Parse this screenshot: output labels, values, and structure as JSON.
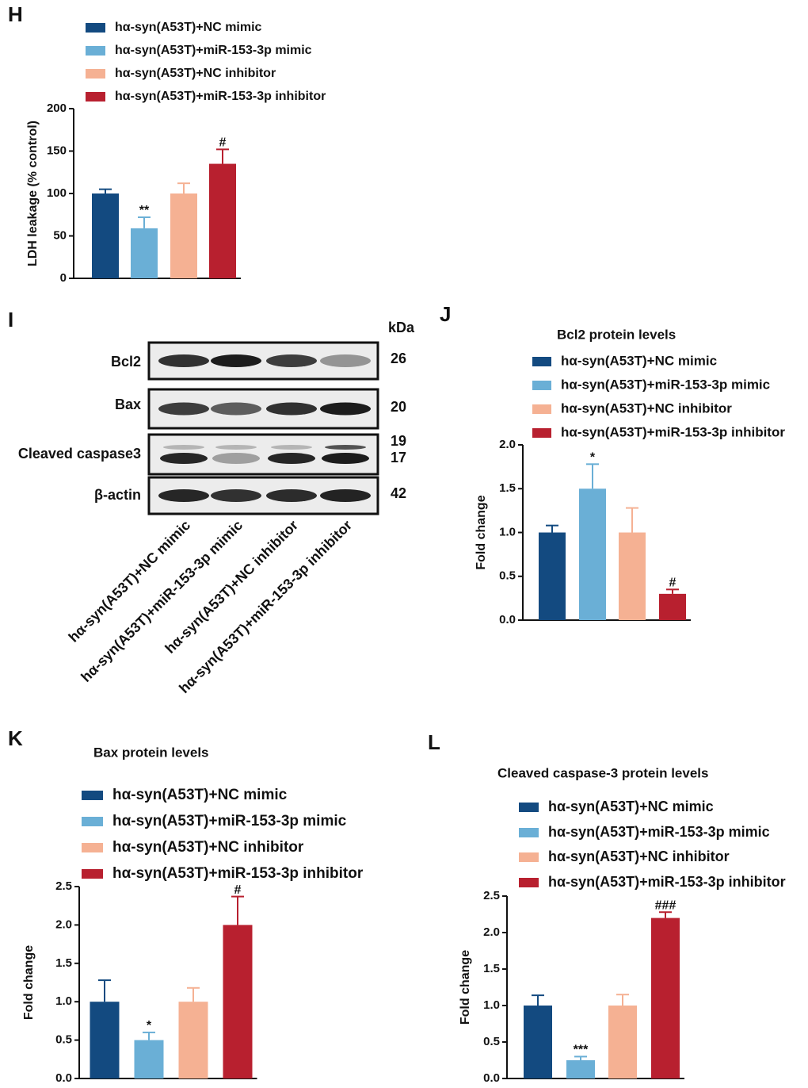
{
  "chart_data": [
    {
      "type": "bar",
      "panel": "H",
      "y_label": "LDH leakage (% control)",
      "ylim": [
        0,
        200
      ],
      "yticks": [
        0,
        50,
        100,
        150,
        200
      ],
      "series": [
        {
          "name": "hα-syn(A53T)+NC mimic",
          "color": "#134a80",
          "values": [
            100
          ],
          "errors": [
            5
          ]
        },
        {
          "name": "hα-syn(A53T)+miR-153-3p mimic",
          "color": "#6aafd6",
          "values": [
            59
          ],
          "errors": [
            13
          ],
          "annotation": "**"
        },
        {
          "name": "hα-syn(A53T)+NC inhibitor",
          "color": "#f5b193",
          "values": [
            100
          ],
          "errors": [
            12
          ]
        },
        {
          "name": "hα-syn(A53T)+miR-153-3p inhibitor",
          "color": "#b8202f",
          "values": [
            135
          ],
          "errors": [
            17
          ],
          "annotation": "#"
        }
      ]
    },
    {
      "type": "bar",
      "panel": "J",
      "title": "Bcl2 protein levels",
      "y_label": "Fold change",
      "ylim": [
        0,
        2
      ],
      "yticks": [
        {
          "value": 0,
          "label": "0.0"
        },
        0.5,
        {
          "value": 1,
          "label": "1.0"
        },
        1.5,
        {
          "value": 2,
          "label": "2.0"
        }
      ],
      "series": [
        {
          "name": "hα-syn(A53T)+NC mimic",
          "color": "#134a80",
          "values": [
            1.0
          ],
          "errors": [
            0.08
          ]
        },
        {
          "name": "hα-syn(A53T)+miR-153-3p mimic",
          "color": "#6aafd6",
          "values": [
            1.5
          ],
          "errors": [
            0.28
          ],
          "annotation": "*"
        },
        {
          "name": "hα-syn(A53T)+NC inhibitor",
          "color": "#f5b193",
          "values": [
            1.0
          ],
          "errors": [
            0.28
          ]
        },
        {
          "name": "hα-syn(A53T)+miR-153-3p inhibitor",
          "color": "#b8202f",
          "values": [
            0.3
          ],
          "errors": [
            0.05
          ],
          "annotation": "#"
        }
      ]
    },
    {
      "type": "bar",
      "panel": "K",
      "title": "Bax protein levels",
      "y_label": "Fold change",
      "ylim": [
        0,
        2.5
      ],
      "yticks": [
        {
          "value": 0,
          "label": "0.0"
        },
        0.5,
        {
          "value": 1,
          "label": "1.0"
        },
        1.5,
        {
          "value": 2,
          "label": "2.0"
        },
        2.5
      ],
      "series": [
        {
          "name": "hα-syn(A53T)+NC mimic",
          "color": "#134a80",
          "values": [
            1.0
          ],
          "errors": [
            0.28
          ]
        },
        {
          "name": "hα-syn(A53T)+miR-153-3p mimic",
          "color": "#6aafd6",
          "values": [
            0.5
          ],
          "errors": [
            0.1
          ],
          "annotation": "*"
        },
        {
          "name": "hα-syn(A53T)+NC inhibitor",
          "color": "#f5b193",
          "values": [
            1.0
          ],
          "errors": [
            0.18
          ]
        },
        {
          "name": "hα-syn(A53T)+miR-153-3p inhibitor",
          "color": "#b8202f",
          "values": [
            2.0
          ],
          "errors": [
            0.37
          ],
          "annotation": "#"
        }
      ]
    },
    {
      "type": "bar",
      "panel": "L",
      "title": "Cleaved caspase-3 protein levels",
      "y_label": "Fold change",
      "ylim": [
        0,
        2.5
      ],
      "yticks": [
        {
          "value": 0,
          "label": "0.0"
        },
        0.5,
        {
          "value": 1,
          "label": "1.0"
        },
        1.5,
        {
          "value": 2,
          "label": "2.0"
        },
        2.5
      ],
      "series": [
        {
          "name": "hα-syn(A53T)+NC mimic",
          "color": "#134a80",
          "values": [
            1.0
          ],
          "errors": [
            0.14
          ]
        },
        {
          "name": "hα-syn(A53T)+miR-153-3p mimic",
          "color": "#6aafd6",
          "values": [
            0.25
          ],
          "errors": [
            0.05
          ],
          "annotation": "***"
        },
        {
          "name": "hα-syn(A53T)+NC inhibitor",
          "color": "#f5b193",
          "values": [
            1.0
          ],
          "errors": [
            0.15
          ]
        },
        {
          "name": "hα-syn(A53T)+miR-153-3p inhibitor",
          "color": "#b8202f",
          "values": [
            2.2
          ],
          "errors": [
            0.08
          ],
          "annotation": "###"
        }
      ]
    }
  ],
  "blot": {
    "panel": "I",
    "unit": "kDa",
    "rows": [
      {
        "label": "Bcl2",
        "kda": [
          26
        ]
      },
      {
        "label": "Bax",
        "kda": [
          20
        ]
      },
      {
        "label": "Cleaved caspase3",
        "kda": [
          19,
          17
        ]
      },
      {
        "label": "β-actin",
        "kda": [
          42
        ]
      }
    ],
    "lanes": [
      "hα-syn(A53T)+NC mimic",
      "hα-syn(A53T)+miR-153-3p mimic",
      "hα-syn(A53T)+NC inhibitor",
      "hα-syn(A53T)+miR-153-3p inhibitor"
    ]
  }
}
